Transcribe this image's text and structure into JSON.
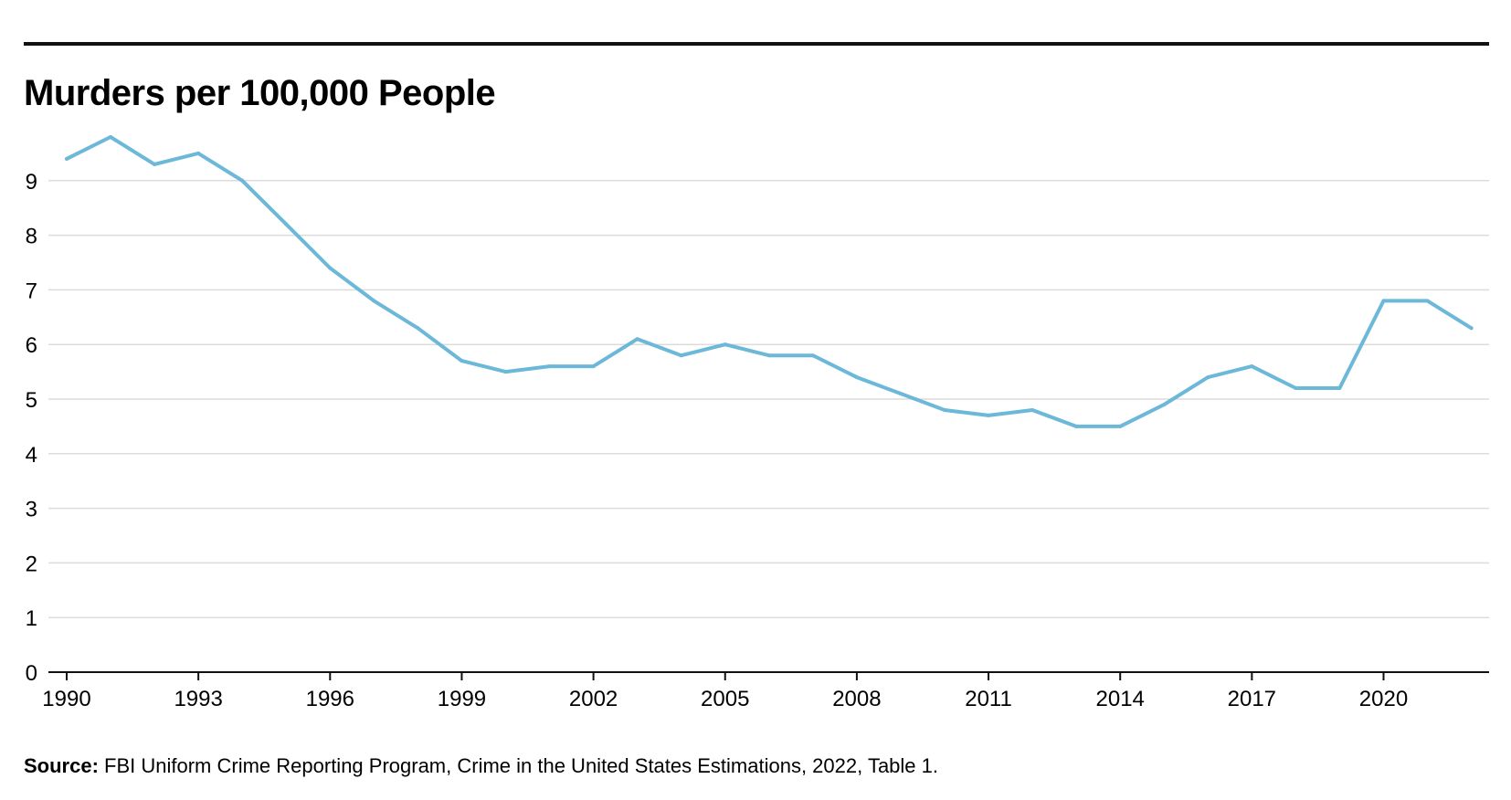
{
  "chart_data": {
    "type": "line",
    "title": "Murders per 100,000 People",
    "xlabel": "",
    "ylabel": "",
    "grid": true,
    "legend": "none",
    "xlim": [
      1990,
      2022
    ],
    "ylim": [
      0,
      9.8
    ],
    "y_ticks": [
      0,
      1,
      2,
      3,
      4,
      5,
      6,
      7,
      8,
      9
    ],
    "x_tick_labels": [
      "1990",
      "1993",
      "1996",
      "1999",
      "2002",
      "2005",
      "2008",
      "2011",
      "2014",
      "2017",
      "2020"
    ],
    "series_color": "#6cb8d8",
    "series": [
      {
        "name": "Murders per 100,000 People",
        "x": [
          1990,
          1991,
          1992,
          1993,
          1994,
          1995,
          1996,
          1997,
          1998,
          1999,
          2000,
          2001,
          2002,
          2003,
          2004,
          2005,
          2006,
          2007,
          2008,
          2009,
          2010,
          2011,
          2012,
          2013,
          2014,
          2015,
          2016,
          2017,
          2018,
          2019,
          2020,
          2021,
          2022
        ],
        "values": [
          9.4,
          9.8,
          9.3,
          9.5,
          9.0,
          8.2,
          7.4,
          6.8,
          6.3,
          5.7,
          5.5,
          5.6,
          5.6,
          6.1,
          5.8,
          6.0,
          5.8,
          5.8,
          5.4,
          5.1,
          4.8,
          4.7,
          4.8,
          4.5,
          4.5,
          4.9,
          5.4,
          5.6,
          5.2,
          5.2,
          6.8,
          6.8,
          6.3
        ]
      }
    ]
  },
  "source": {
    "label": "Source:",
    "text": " FBI Uniform Crime Reporting Program, Crime in the United States Estimations, 2022, Table 1."
  }
}
